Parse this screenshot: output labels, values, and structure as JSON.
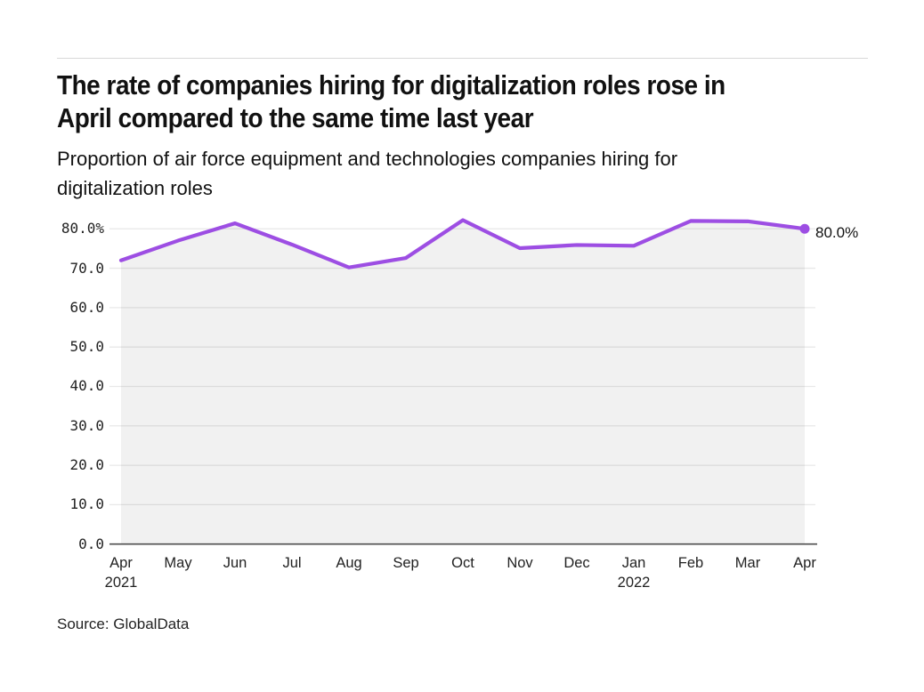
{
  "header": {
    "title": "The rate of companies hiring for digitalization roles rose in\nApril compared to the same time last year",
    "subtitle": "Proportion of air force equipment and technologies companies hiring for\ndigitalization roles"
  },
  "footer": {
    "source": "Source: GlobalData"
  },
  "chart_data": {
    "type": "line",
    "title": "The rate of companies hiring for digitalization roles rose in April compared to the same time last year",
    "subtitle": "Proportion of air force equipment and technologies companies hiring for digitalization roles",
    "source": "Source: GlobalData",
    "categories": [
      "Apr 2021",
      "May",
      "Jun",
      "Jul",
      "Aug",
      "Sep",
      "Oct",
      "Nov",
      "Dec",
      "Jan 2022",
      "Feb",
      "Mar",
      "Apr 2022"
    ],
    "values": [
      72.0,
      77.0,
      81.4,
      76.0,
      70.2,
      72.6,
      82.2,
      75.1,
      75.9,
      75.7,
      82.0,
      81.9,
      80.0
    ],
    "end_label": "80.0%",
    "xlabel": "",
    "ylabel": "",
    "ylim": [
      0,
      80
    ],
    "grid": true,
    "legend": false,
    "yticks": [
      {
        "value": 80,
        "label": "80.0%"
      },
      {
        "value": 70,
        "label": "70.0"
      },
      {
        "value": 60,
        "label": "60.0"
      },
      {
        "value": 50,
        "label": "50.0"
      },
      {
        "value": 40,
        "label": "40.0"
      },
      {
        "value": 30,
        "label": "30.0"
      },
      {
        "value": 20,
        "label": "20.0"
      },
      {
        "value": 10,
        "label": "10.0"
      },
      {
        "value": 0,
        "label": "0.0"
      }
    ],
    "xticks": [
      {
        "label": "Apr",
        "sub": "2021"
      },
      {
        "label": "May",
        "sub": ""
      },
      {
        "label": "Jun",
        "sub": ""
      },
      {
        "label": "Jul",
        "sub": ""
      },
      {
        "label": "Aug",
        "sub": ""
      },
      {
        "label": "Sep",
        "sub": ""
      },
      {
        "label": "Oct",
        "sub": ""
      },
      {
        "label": "Nov",
        "sub": ""
      },
      {
        "label": "Dec",
        "sub": ""
      },
      {
        "label": "Jan",
        "sub": "2022"
      },
      {
        "label": "Feb",
        "sub": ""
      },
      {
        "label": "Mar",
        "sub": ""
      },
      {
        "label": "Apr",
        "sub": ""
      }
    ],
    "colors": {
      "line": "#9d4ee3",
      "fill": "rgba(0,0,0,0.055)",
      "grid": "#e8e8e8",
      "axis": "#4d4d4d"
    }
  }
}
